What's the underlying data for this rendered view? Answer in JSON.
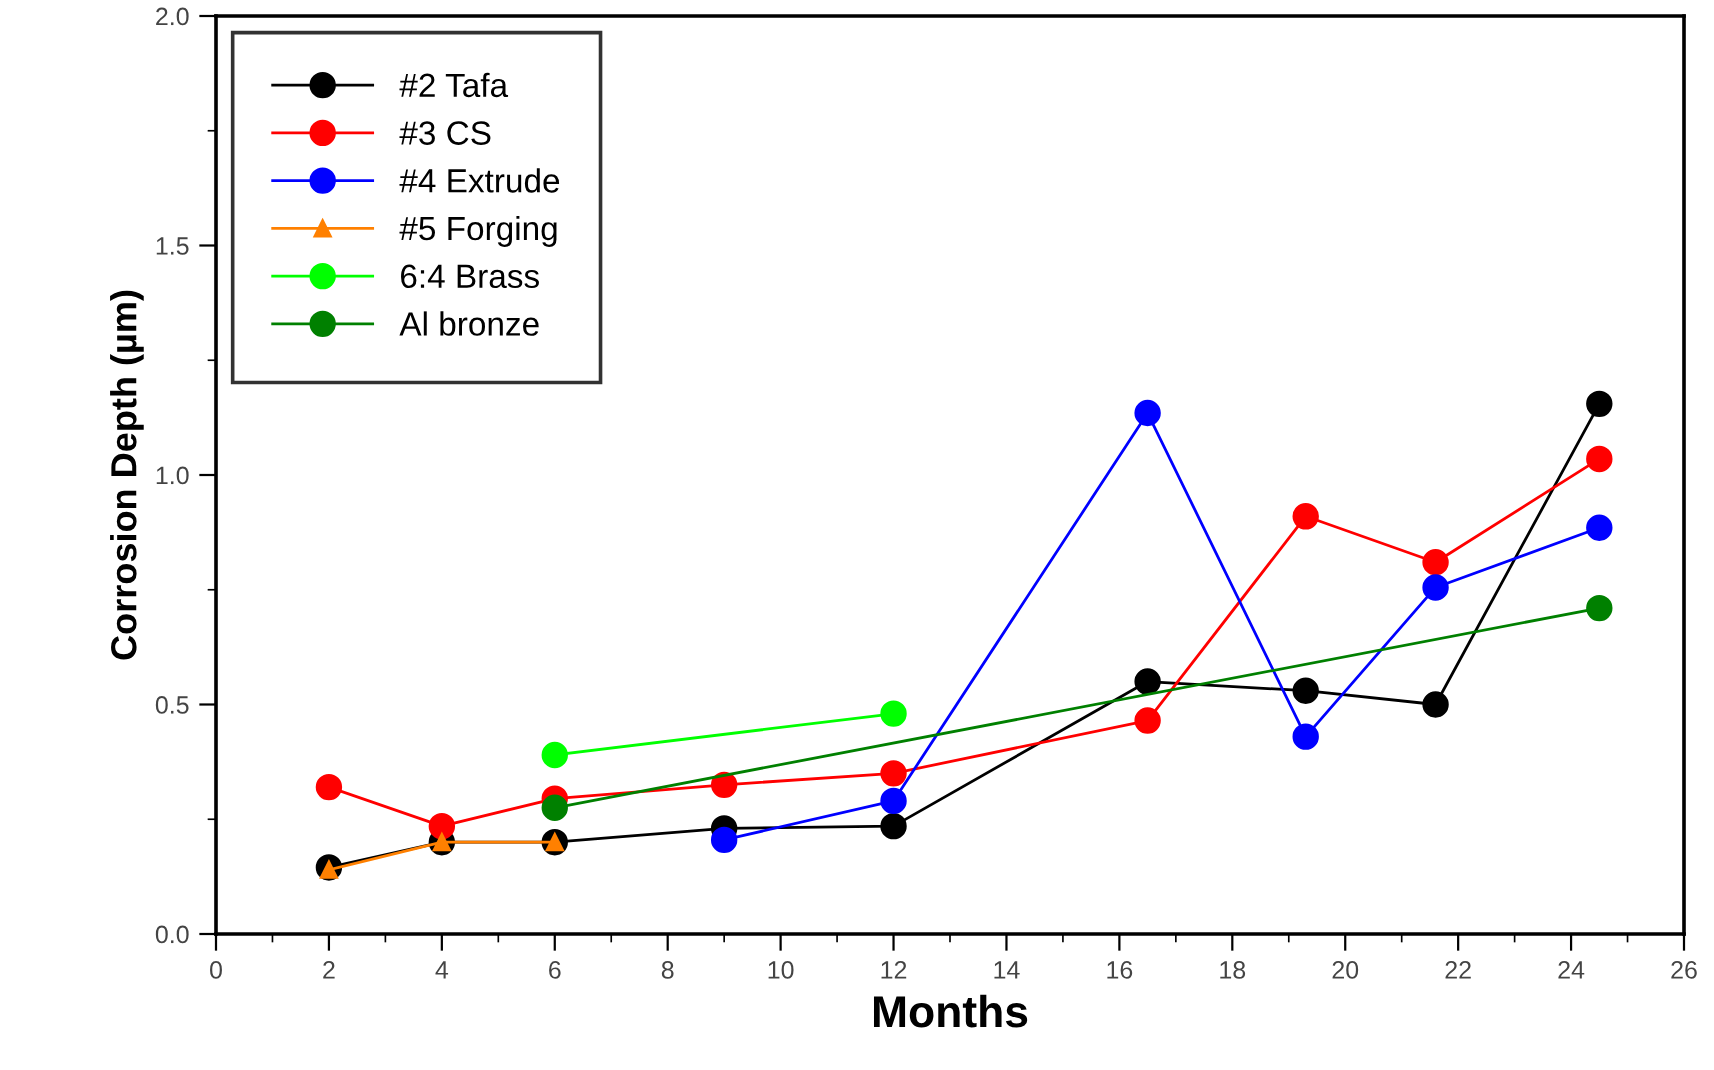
{
  "chart_data": {
    "type": "line",
    "xlabel": "Months",
    "ylabel": "Corrosion Depth (µm)",
    "xlim": [
      0,
      26
    ],
    "xticks": [
      0,
      {
        "value": 1,
        "label": null
      },
      2,
      {
        "value": 3,
        "label": null
      },
      4,
      {
        "value": 5,
        "label": null
      },
      6,
      {
        "value": 7,
        "label": null
      },
      8,
      {
        "value": 9,
        "label": null
      },
      10,
      {
        "value": 11,
        "label": null
      },
      12,
      {
        "value": 13,
        "label": null
      },
      14,
      {
        "value": 15,
        "label": null
      },
      16,
      {
        "value": 17,
        "label": null
      },
      18,
      {
        "value": 19,
        "label": null
      },
      20,
      {
        "value": 21,
        "label": null
      },
      22,
      {
        "value": 23,
        "label": null
      },
      24,
      {
        "value": 25,
        "label": null
      },
      26
    ],
    "ylim": [
      0,
      2.0
    ],
    "yticks": [
      {
        "value": 0,
        "label": "0.0"
      },
      {
        "value": 0.25,
        "label": null
      },
      {
        "value": 0.5,
        "label": "0.5"
      },
      {
        "value": 0.75,
        "label": null
      },
      {
        "value": 1.0,
        "label": "1.0"
      },
      {
        "value": 1.25,
        "label": null
      },
      {
        "value": 1.5,
        "label": "1.5"
      },
      {
        "value": 1.75,
        "label": null
      },
      {
        "value": 2.0,
        "label": "2.0"
      }
    ],
    "grid": false,
    "legend": "top left",
    "line_style": "solid",
    "series": [
      {
        "name": "#2 Tafa",
        "color": "#000000",
        "marker": "circle",
        "x": [
          2,
          4,
          6,
          9,
          12,
          16.5,
          19.3,
          21.6,
          24.5
        ],
        "values": [
          0.145,
          0.2,
          0.2,
          0.23,
          0.235,
          0.55,
          0.53,
          0.5,
          1.155
        ]
      },
      {
        "name": "#3 CS",
        "color": "#ff0000",
        "marker": "circle",
        "x": [
          2,
          4,
          6,
          9,
          12,
          16.5,
          19.3,
          21.6,
          24.5
        ],
        "values": [
          0.32,
          0.235,
          0.295,
          0.325,
          0.35,
          0.465,
          0.91,
          0.81,
          1.035
        ]
      },
      {
        "name": "#4 Extrude",
        "color": "#0000ff",
        "marker": "circle",
        "x": [
          9,
          12,
          16.5,
          19.3,
          21.6,
          24.5
        ],
        "values": [
          0.205,
          0.29,
          1.135,
          0.43,
          0.755,
          0.885
        ]
      },
      {
        "name": "#5 Forging",
        "color": "#ff8000",
        "marker": "triangle",
        "x": [
          2,
          4,
          6
        ],
        "values": [
          0.14,
          0.2,
          0.2
        ]
      },
      {
        "name": "6:4 Brass",
        "color": "#00ff00",
        "marker": "circle",
        "x": [
          6,
          12
        ],
        "values": [
          0.39,
          0.48
        ]
      },
      {
        "name": "Al bronze",
        "color": "#008000",
        "marker": "circle",
        "x": [
          6,
          24.5
        ],
        "values": [
          0.275,
          0.71
        ]
      }
    ]
  }
}
